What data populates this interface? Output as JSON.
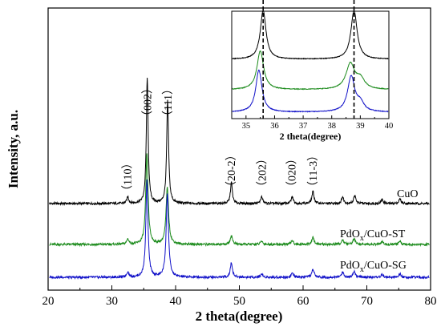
{
  "chart_data": [
    {
      "type": "line",
      "title": "",
      "xlabel": "2 theta(degree)",
      "ylabel": "Intensity, a.u.",
      "xlim": [
        20,
        80
      ],
      "xticks": [
        20,
        30,
        40,
        50,
        60,
        70,
        80
      ],
      "y_tick_labels": false,
      "grid": false,
      "colors": {
        "CuO": "#000000",
        "PdOx/CuO-ST": "#1a8a1a",
        "PdOx/CuO-SG": "#1010c8"
      },
      "series": [
        {
          "name": "CuO",
          "label_main": "CuO",
          "label_sub": "",
          "label_suffix": "",
          "color": "#000000",
          "offset": 2.0,
          "baseline": 0.0,
          "peaks": [
            [
              32.5,
              0.1,
              0.18
            ],
            [
              35.55,
              1.9,
              0.17
            ],
            [
              38.75,
              1.55,
              0.18
            ],
            [
              48.75,
              0.32,
              0.18
            ],
            [
              53.5,
              0.1,
              0.2
            ],
            [
              58.3,
              0.1,
              0.2
            ],
            [
              61.55,
              0.18,
              0.2
            ],
            [
              66.2,
              0.1,
              0.2
            ],
            [
              68.1,
              0.12,
              0.2
            ],
            [
              72.4,
              0.06,
              0.2
            ],
            [
              75.2,
              0.07,
              0.2
            ]
          ]
        },
        {
          "name": "PdOx/CuO-ST",
          "label_main": "PdO",
          "label_sub": "x",
          "label_suffix": "/CuO-ST",
          "color": "#1a8a1a",
          "offset": 1.0,
          "baseline": 0.0,
          "peaks": [
            [
              32.5,
              0.08,
              0.2
            ],
            [
              35.5,
              1.35,
              0.22
            ],
            [
              38.7,
              0.85,
              0.24
            ],
            [
              48.75,
              0.13,
              0.22
            ],
            [
              53.5,
              0.05,
              0.2
            ],
            [
              58.3,
              0.06,
              0.2
            ],
            [
              61.55,
              0.1,
              0.22
            ],
            [
              66.2,
              0.07,
              0.2
            ],
            [
              68.0,
              0.08,
              0.22
            ],
            [
              72.4,
              0.04,
              0.2
            ],
            [
              75.2,
              0.05,
              0.2
            ]
          ]
        },
        {
          "name": "PdOx/CuO-SG",
          "label_main": "PdO",
          "label_sub": "x",
          "label_suffix": "/CuO-SG",
          "color": "#1010c8",
          "offset": 0.0,
          "baseline": 0.0,
          "peaks": [
            [
              32.5,
              0.08,
              0.2
            ],
            [
              35.5,
              1.45,
              0.2
            ],
            [
              38.7,
              1.25,
              0.22
            ],
            [
              48.75,
              0.22,
              0.2
            ],
            [
              53.5,
              0.05,
              0.2
            ],
            [
              58.3,
              0.06,
              0.2
            ],
            [
              61.55,
              0.12,
              0.22
            ],
            [
              66.2,
              0.08,
              0.2
            ],
            [
              68.0,
              0.09,
              0.22
            ],
            [
              72.4,
              0.04,
              0.2
            ],
            [
              75.2,
              0.05,
              0.2
            ]
          ]
        }
      ],
      "peak_annotations": [
        {
          "x": 32.4,
          "label": "（110）"
        },
        {
          "x": 35.55,
          "label": "（002）"
        },
        {
          "x": 38.75,
          "label": "（111）"
        },
        {
          "x": 48.7,
          "label": "（20-2）"
        },
        {
          "x": 53.5,
          "label": "（202）"
        },
        {
          "x": 58.2,
          "label": "（020）"
        },
        {
          "x": 61.5,
          "label": "（11-3）"
        }
      ]
    },
    {
      "type": "line",
      "role": "inset",
      "title": "",
      "xlabel": "2 theta(degree)",
      "ylabel": "",
      "xlim": [
        34.5,
        40
      ],
      "xticks": [
        35,
        36,
        37,
        38,
        39,
        40
      ],
      "dashed_reference_lines_x": [
        35.6,
        38.78
      ],
      "series": [
        {
          "name": "CuO",
          "color": "#000000",
          "offset": 2.0,
          "peaks": [
            [
              35.6,
              1.45,
              0.12
            ],
            [
              38.78,
              1.45,
              0.13
            ]
          ]
        },
        {
          "name": "PdOx/CuO-ST",
          "color": "#1a8a1a",
          "offset": 1.0,
          "peaks": [
            [
              35.5,
              1.15,
              0.14
            ],
            [
              38.65,
              0.75,
              0.18
            ],
            [
              39.0,
              0.3,
              0.18
            ]
          ]
        },
        {
          "name": "PdOx/CuO-SG",
          "color": "#1010c8",
          "offset": 0.0,
          "peaks": [
            [
              35.45,
              1.25,
              0.13
            ],
            [
              38.68,
              1.05,
              0.15
            ],
            [
              39.0,
              0.25,
              0.15
            ]
          ]
        }
      ]
    }
  ]
}
